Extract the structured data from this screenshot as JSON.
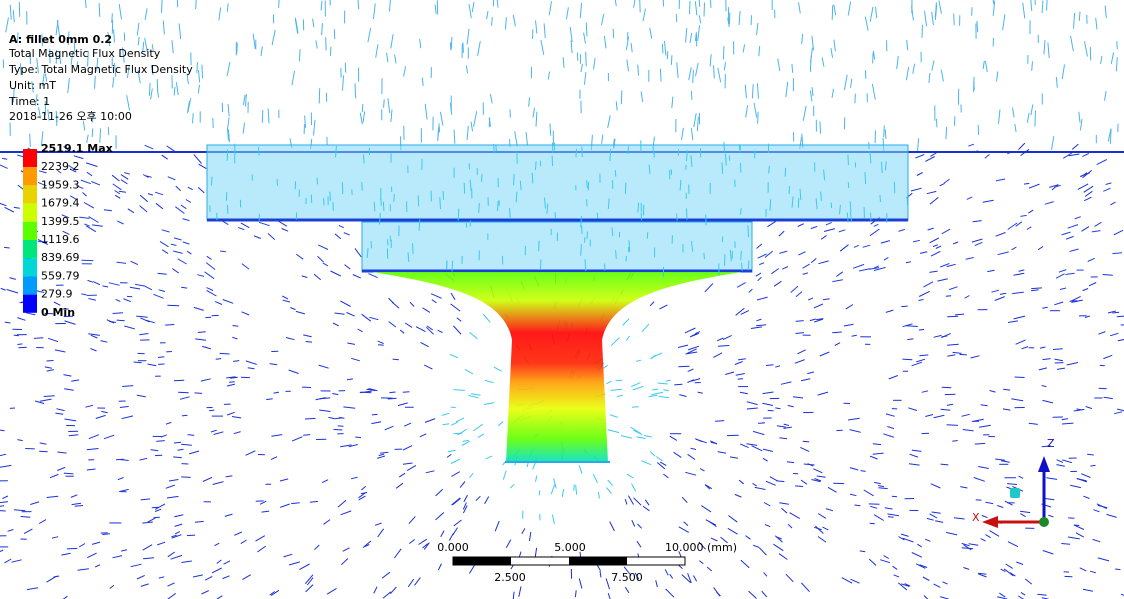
{
  "header": {
    "title": "A: fillet 0mm 0.2",
    "result": "Total Magnetic Flux Density",
    "type": "Type: Total Magnetic Flux Density",
    "unit": "Unit: mT",
    "time": "Time: 1",
    "timestamp": "2018-11-26 오후 10:00"
  },
  "legend": {
    "labels": [
      "2519.1 Max",
      "2239.2",
      "1959.3",
      "1679.4",
      "1399.5",
      "1119.6",
      "839.69",
      "559.79",
      "279.9",
      "0 Min"
    ],
    "colors": [
      "#ff0000",
      "#ff9b00",
      "#e8d200",
      "#ccff00",
      "#5cff00",
      "#00e67a",
      "#00d8d8",
      "#009bff",
      "#0000ff"
    ]
  },
  "scale_bar": {
    "top_labels": [
      "0.000",
      "5.000",
      "10.000 (mm)"
    ],
    "bottom_labels": [
      "2.500",
      "7.500"
    ]
  },
  "triad": {
    "z": "Z",
    "x": "X"
  }
}
